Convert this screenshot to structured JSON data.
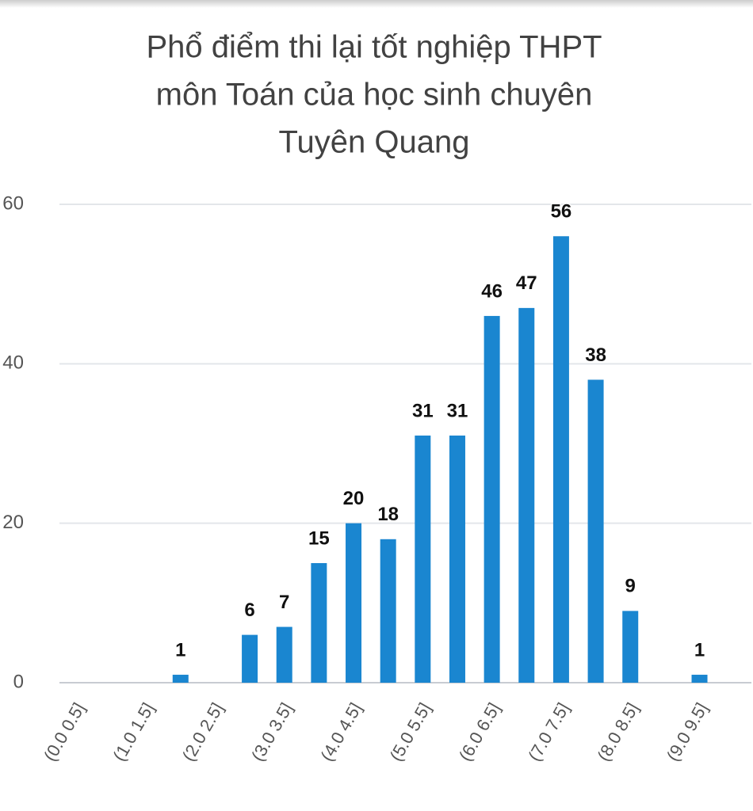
{
  "chart_data": {
    "type": "bar",
    "title": [
      "Phổ điểm thi lại tốt nghiệp THPT",
      "môn Toán của học sinh chuyên",
      "Tuyên Quang"
    ],
    "categories": [
      "(0.0 0.5]",
      null,
      "(1.0 1.5]",
      null,
      "(2.0 2.5]",
      null,
      "(3.0 3.5]",
      null,
      "(4.0 4.5]",
      null,
      "(5.0 5.5]",
      null,
      "(6.0 6.5]",
      null,
      "(7.0 7.5]",
      null,
      "(8.0 8.5]",
      null,
      "(9.0 9.5]",
      null
    ],
    "values": [
      0,
      0,
      0,
      1,
      0,
      6,
      7,
      15,
      20,
      18,
      31,
      31,
      46,
      47,
      56,
      38,
      9,
      0,
      1,
      0
    ],
    "color": "#1a86d0",
    "ylim": [
      0,
      60
    ],
    "yticks": [
      0,
      20,
      40,
      60
    ],
    "grid": true
  }
}
